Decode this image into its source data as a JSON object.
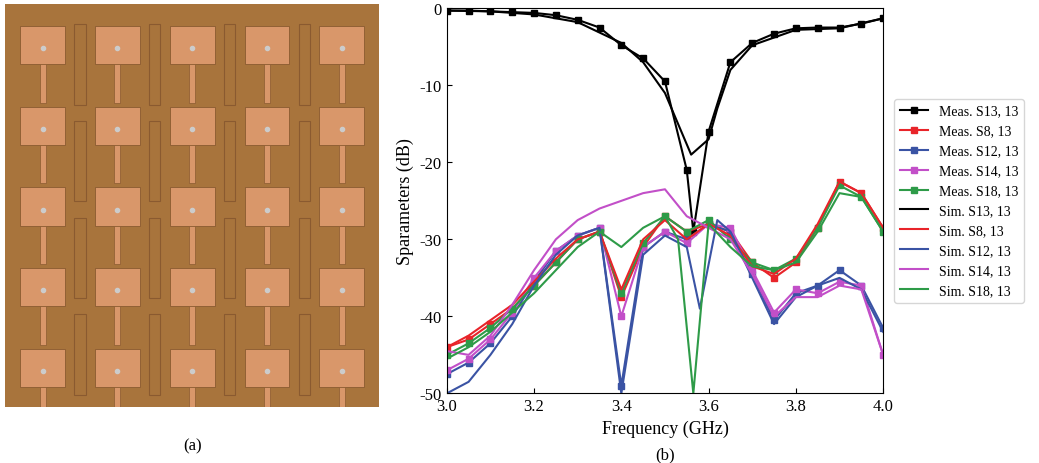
{
  "photo": {
    "caption": "(a)"
  },
  "chart_data": {
    "type": "line",
    "caption": "(b)",
    "xlabel": "Frequency (GHz)",
    "ylabel": "Sparameters (dB)",
    "xlim": [
      3.0,
      4.0
    ],
    "xticks": [
      3.0,
      3.2,
      3.4,
      3.6,
      3.8,
      4.0
    ],
    "ylim": [
      -50,
      0
    ],
    "yticks": [
      -50,
      -40,
      -30,
      -20,
      -10,
      0
    ],
    "grid": false,
    "legend": "right",
    "series": [
      {
        "name": "Meas. S13, 13",
        "color": "#000000",
        "marker": "square",
        "x": [
          3.0,
          3.05,
          3.1,
          3.15,
          3.2,
          3.25,
          3.3,
          3.35,
          3.4,
          3.45,
          3.5,
          3.55,
          3.565,
          3.6,
          3.65,
          3.7,
          3.75,
          3.8,
          3.85,
          3.9,
          3.95,
          4.0
        ],
        "values": [
          -0.3,
          -0.3,
          -0.4,
          -0.5,
          -0.6,
          -0.9,
          -1.5,
          -2.5,
          -4.8,
          -6.5,
          -9.5,
          -21,
          -29,
          -16,
          -7,
          -4.5,
          -3.3,
          -2.6,
          -2.5,
          -2.5,
          -2.0,
          -1.3
        ]
      },
      {
        "name": "Meas. S8, 13",
        "color": "#e8242a",
        "marker": "square",
        "x": [
          3.0,
          3.05,
          3.1,
          3.15,
          3.2,
          3.25,
          3.3,
          3.35,
          3.4,
          3.45,
          3.5,
          3.55,
          3.6,
          3.65,
          3.7,
          3.75,
          3.8,
          3.85,
          3.9,
          3.95,
          4.0
        ],
        "values": [
          -44,
          -43,
          -41,
          -39,
          -36,
          -33,
          -30,
          -29,
          -37.5,
          -31,
          -27,
          -29,
          -28,
          -29,
          -33,
          -35,
          -33,
          -28.5,
          -22.5,
          -24,
          -28.5
        ]
      },
      {
        "name": "Meas. S12, 13",
        "color": "#3a53a4",
        "marker": "square",
        "x": [
          3.0,
          3.05,
          3.1,
          3.15,
          3.2,
          3.25,
          3.3,
          3.35,
          3.4,
          3.45,
          3.5,
          3.55,
          3.6,
          3.65,
          3.7,
          3.75,
          3.8,
          3.85,
          3.9,
          3.95,
          4.0
        ],
        "values": [
          -47.5,
          -46,
          -43.5,
          -40,
          -35.5,
          -31.5,
          -29.5,
          -28.5,
          -49,
          -31,
          -29,
          -30,
          -28,
          -29,
          -34.5,
          -40.5,
          -37,
          -36,
          -34,
          -36,
          -41.5
        ]
      },
      {
        "name": "Meas. S14, 13",
        "color": "#c24fc8",
        "marker": "square",
        "x": [
          3.0,
          3.05,
          3.1,
          3.15,
          3.2,
          3.25,
          3.3,
          3.35,
          3.4,
          3.45,
          3.5,
          3.55,
          3.6,
          3.65,
          3.7,
          3.75,
          3.8,
          3.85,
          3.9,
          3.95,
          4.0
        ],
        "values": [
          -47,
          -45.5,
          -43,
          -39.5,
          -35,
          -31.5,
          -29.5,
          -28.5,
          -40,
          -31,
          -29,
          -30.5,
          -28,
          -28.5,
          -34,
          -39.5,
          -36.5,
          -37,
          -35.5,
          -36,
          -45
        ]
      },
      {
        "name": "Meas. S18, 13",
        "color": "#2e9b48",
        "marker": "square",
        "x": [
          3.0,
          3.05,
          3.1,
          3.15,
          3.2,
          3.25,
          3.3,
          3.35,
          3.4,
          3.45,
          3.5,
          3.55,
          3.6,
          3.65,
          3.7,
          3.75,
          3.8,
          3.85,
          3.9,
          3.95,
          4.0
        ],
        "values": [
          -45,
          -43.5,
          -41.5,
          -39,
          -36,
          -33,
          -30,
          -29,
          -37,
          -30.5,
          -27,
          -29,
          -27.5,
          -30,
          -33,
          -34,
          -32.5,
          -28.5,
          -23,
          -24.5,
          -29
        ]
      },
      {
        "name": "Sim. S13, 13",
        "color": "#000000",
        "marker": "none",
        "x": [
          3.0,
          3.1,
          3.2,
          3.3,
          3.4,
          3.45,
          3.5,
          3.53,
          3.56,
          3.6,
          3.62,
          3.65,
          3.7,
          3.8,
          3.9,
          4.0
        ],
        "values": [
          -0.3,
          -0.4,
          -0.8,
          -1.8,
          -4.5,
          -7,
          -11,
          -15,
          -19,
          -17,
          -13,
          -8,
          -4.8,
          -2.8,
          -2.6,
          -1.3
        ]
      },
      {
        "name": "Sim. S8, 13",
        "color": "#e8242a",
        "marker": "none",
        "x": [
          3.0,
          3.05,
          3.1,
          3.15,
          3.2,
          3.25,
          3.3,
          3.35,
          3.4,
          3.45,
          3.5,
          3.55,
          3.6,
          3.65,
          3.7,
          3.75,
          3.8,
          3.85,
          3.9,
          3.95,
          4.0
        ],
        "values": [
          -44,
          -42.5,
          -40.5,
          -38.5,
          -35.5,
          -32.5,
          -30,
          -29,
          -36.5,
          -30,
          -27.5,
          -30,
          -28,
          -29.5,
          -33.5,
          -34.5,
          -32.5,
          -28,
          -22.5,
          -24,
          -28.5
        ]
      },
      {
        "name": "Sim. S12, 13",
        "color": "#3a53a4",
        "marker": "none",
        "x": [
          3.0,
          3.05,
          3.1,
          3.15,
          3.2,
          3.25,
          3.3,
          3.35,
          3.4,
          3.45,
          3.5,
          3.55,
          3.58,
          3.62,
          3.65,
          3.7,
          3.75,
          3.8,
          3.85,
          3.9,
          3.95,
          4.0
        ],
        "values": [
          -50,
          -48.5,
          -45,
          -41,
          -36,
          -32,
          -29.5,
          -28.5,
          -50,
          -32,
          -29.5,
          -31,
          -39,
          -27.5,
          -29,
          -35,
          -41,
          -37.5,
          -36,
          -35,
          -36.5,
          -42
        ]
      },
      {
        "name": "Sim. S14, 13",
        "color": "#c24fc8",
        "marker": "none",
        "x": [
          3.0,
          3.05,
          3.1,
          3.15,
          3.2,
          3.25,
          3.3,
          3.35,
          3.4,
          3.45,
          3.5,
          3.55,
          3.6,
          3.65,
          3.7,
          3.75,
          3.8,
          3.85,
          3.9,
          3.95,
          4.0
        ],
        "values": [
          -44.5,
          -45,
          -42.5,
          -38.5,
          -34,
          -30,
          -27.5,
          -26,
          -25,
          -24,
          -23.5,
          -27,
          -28.5,
          -30,
          -34.5,
          -40,
          -37.5,
          -37.5,
          -36,
          -36.5,
          -45
        ]
      },
      {
        "name": "Sim. S18, 13",
        "color": "#2e9b48",
        "marker": "none",
        "x": [
          3.0,
          3.05,
          3.1,
          3.15,
          3.2,
          3.25,
          3.3,
          3.35,
          3.4,
          3.45,
          3.5,
          3.53,
          3.565,
          3.6,
          3.65,
          3.7,
          3.75,
          3.8,
          3.85,
          3.9,
          3.95,
          4.0
        ],
        "values": [
          -45.5,
          -44,
          -42,
          -39.5,
          -37,
          -34,
          -31,
          -29,
          -31,
          -28.5,
          -27,
          -30,
          -50,
          -28,
          -31,
          -33.5,
          -34,
          -33,
          -29,
          -24,
          -24.5,
          -29
        ]
      }
    ]
  }
}
